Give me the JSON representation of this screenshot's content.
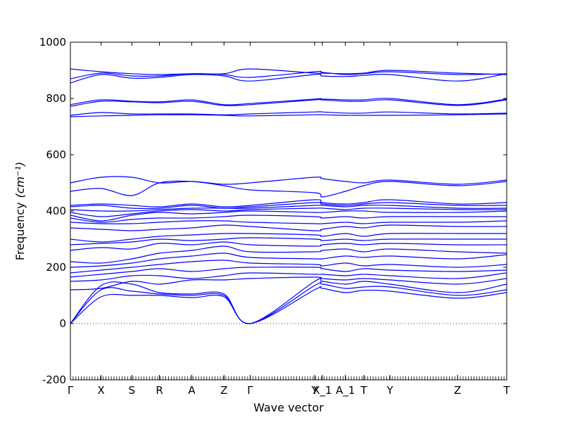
{
  "chart_data": {
    "type": "line",
    "title": "",
    "xlabel": "Wave vector",
    "ylabel": "Frequency",
    "ylabel_unit": "(cm⁻¹)",
    "ylim": [
      -200,
      1000
    ],
    "yticks": [
      -200,
      0,
      200,
      400,
      600,
      800,
      1000
    ],
    "grid": false,
    "legend": "none",
    "line_color": "#0000ff",
    "zero_line": {
      "y": 0,
      "style": "dotted",
      "color": "#000000"
    },
    "x_range": [
      0,
      14.2
    ],
    "kpoints": [
      {
        "label": "Γ",
        "x": 0.0
      },
      {
        "label": "X",
        "x": 1.0
      },
      {
        "label": "S",
        "x": 2.0
      },
      {
        "label": "R",
        "x": 2.9
      },
      {
        "label": "A",
        "x": 3.95
      },
      {
        "label": "Z",
        "x": 5.0
      },
      {
        "label": "Γ",
        "x": 5.85
      },
      {
        "label": "Y",
        "x": 7.95
      },
      {
        "label": "X_1",
        "x": 8.2
      },
      {
        "label": "A_1",
        "x": 8.95
      },
      {
        "label": "T",
        "x": 9.55
      },
      {
        "label": "Y",
        "x": 10.4
      },
      {
        "label": "Z",
        "x": 12.6
      },
      {
        "label": "T",
        "x": 14.2
      }
    ],
    "series": [
      {
        "x": [
          0,
          1,
          2,
          2.9,
          3.95,
          5,
          5.85,
          7.95,
          8.2,
          8.95,
          9.55,
          10.4,
          12.6,
          14.2
        ],
        "y": [
          0,
          95,
          100,
          100,
          92,
          95,
          0,
          120,
          125,
          110,
          118,
          115,
          90,
          110
        ]
      },
      {
        "x": [
          0,
          1,
          2,
          2.9,
          3.95,
          5,
          5.85,
          7.95,
          8.2,
          8.95,
          9.55,
          10.4,
          12.6,
          14.2
        ],
        "y": [
          0,
          120,
          115,
          105,
          100,
          100,
          0,
          135,
          140,
          125,
          130,
          130,
          100,
          120
        ]
      },
      {
        "x": [
          0,
          1,
          2,
          2.9,
          3.95,
          5,
          5.85,
          7.95,
          8.2,
          8.95,
          9.55,
          10.4,
          12.6,
          14.2
        ],
        "y": [
          0,
          135,
          140,
          110,
          105,
          105,
          0,
          150,
          150,
          140,
          150,
          140,
          110,
          140
        ]
      },
      {
        "x": [
          0,
          1,
          2,
          2.9,
          3.95,
          5,
          5.85,
          7.95,
          8.2,
          8.95,
          9.55,
          10.4,
          12.6,
          14.2
        ],
        "y": [
          120,
          125,
          150,
          140,
          155,
          155,
          160,
          165,
          160,
          155,
          160,
          155,
          140,
          160
        ]
      },
      {
        "x": [
          0,
          1,
          2,
          2.9,
          3.95,
          5,
          5.85,
          7.95,
          8.2,
          8.95,
          9.55,
          10.4,
          12.6,
          14.2
        ],
        "y": [
          150,
          155,
          170,
          170,
          160,
          170,
          180,
          175,
          175,
          170,
          175,
          170,
          160,
          180
        ]
      },
      {
        "x": [
          0,
          1,
          2,
          2.9,
          3.95,
          5,
          5.85,
          7.95,
          8.2,
          8.95,
          9.55,
          10.4,
          12.6,
          14.2
        ],
        "y": [
          165,
          175,
          185,
          195,
          185,
          195,
          200,
          200,
          195,
          185,
          195,
          190,
          185,
          190
        ]
      },
      {
        "x": [
          0,
          1,
          2,
          2.9,
          3.95,
          5,
          5.85,
          7.95,
          8.2,
          8.95,
          9.55,
          10.4,
          12.6,
          14.2
        ],
        "y": [
          180,
          190,
          200,
          210,
          220,
          225,
          215,
          210,
          205,
          215,
          205,
          210,
          200,
          210
        ]
      },
      {
        "x": [
          0,
          1,
          2,
          2.9,
          3.95,
          5,
          5.85,
          7.95,
          8.2,
          8.95,
          9.55,
          10.4,
          12.6,
          14.2
        ],
        "y": [
          200,
          205,
          215,
          230,
          240,
          250,
          235,
          230,
          230,
          240,
          235,
          240,
          230,
          245
        ]
      },
      {
        "x": [
          0,
          1,
          2,
          2.9,
          3.95,
          5,
          5.85,
          7.95,
          8.2,
          8.95,
          9.55,
          10.4,
          12.6,
          14.2
        ],
        "y": [
          220,
          215,
          230,
          250,
          260,
          275,
          255,
          255,
          260,
          265,
          255,
          265,
          255,
          250
        ]
      },
      {
        "x": [
          0,
          1,
          2,
          2.9,
          3.95,
          5,
          5.85,
          7.95,
          8.2,
          8.95,
          9.55,
          10.4,
          12.6,
          14.2
        ],
        "y": [
          260,
          270,
          265,
          285,
          280,
          290,
          280,
          275,
          280,
          285,
          280,
          285,
          280,
          280
        ]
      },
      {
        "x": [
          0,
          1,
          2,
          2.9,
          3.95,
          5,
          5.85,
          7.95,
          8.2,
          8.95,
          9.55,
          10.4,
          12.6,
          14.2
        ],
        "y": [
          280,
          285,
          290,
          300,
          295,
          300,
          305,
          300,
          295,
          300,
          295,
          300,
          300,
          300
        ]
      },
      {
        "x": [
          0,
          1,
          2,
          2.9,
          3.95,
          5,
          5.85,
          7.95,
          8.2,
          8.95,
          9.55,
          10.4,
          12.6,
          14.2
        ],
        "y": [
          300,
          290,
          300,
          310,
          315,
          320,
          320,
          315,
          310,
          320,
          310,
          320,
          320,
          320
        ]
      },
      {
        "x": [
          0,
          1,
          2,
          2.9,
          3.95,
          5,
          5.85,
          7.95,
          8.2,
          8.95,
          9.55,
          10.4,
          12.6,
          14.2
        ],
        "y": [
          340,
          335,
          330,
          335,
          340,
          350,
          345,
          330,
          335,
          345,
          340,
          350,
          345,
          345
        ]
      },
      {
        "x": [
          0,
          1,
          2,
          2.9,
          3.95,
          5,
          5.85,
          7.95,
          8.2,
          8.95,
          9.55,
          10.4,
          12.6,
          14.2
        ],
        "y": [
          360,
          355,
          355,
          360,
          365,
          365,
          360,
          355,
          355,
          360,
          355,
          360,
          360,
          365
        ]
      },
      {
        "x": [
          0,
          1,
          2,
          2.9,
          3.95,
          5,
          5.85,
          7.95,
          8.2,
          8.95,
          9.55,
          10.4,
          12.6,
          14.2
        ],
        "y": [
          375,
          360,
          370,
          375,
          375,
          380,
          385,
          380,
          375,
          380,
          375,
          380,
          380,
          380
        ]
      },
      {
        "x": [
          0,
          1,
          2,
          2.9,
          3.95,
          5,
          5.85,
          7.95,
          8.2,
          8.95,
          9.55,
          10.4,
          12.6,
          14.2
        ],
        "y": [
          385,
          365,
          385,
          395,
          390,
          395,
          400,
          395,
          395,
          400,
          400,
          395,
          395,
          400
        ]
      },
      {
        "x": [
          0,
          1,
          2,
          2.9,
          3.95,
          5,
          5.85,
          7.95,
          8.2,
          8.95,
          9.55,
          10.4,
          12.6,
          14.2
        ],
        "y": [
          395,
          380,
          390,
          400,
          405,
          400,
          405,
          410,
          410,
          405,
          410,
          410,
          405,
          405
        ]
      },
      {
        "x": [
          0,
          1,
          2,
          2.9,
          3.95,
          5,
          5.85,
          7.95,
          8.2,
          8.95,
          9.55,
          10.4,
          12.6,
          14.2
        ],
        "y": [
          405,
          400,
          400,
          405,
          410,
          410,
          410,
          420,
          420,
          415,
          420,
          420,
          410,
          410
        ]
      },
      {
        "x": [
          0,
          1,
          2,
          2.9,
          3.95,
          5,
          5.85,
          7.95,
          8.2,
          8.95,
          9.55,
          10.4,
          12.6,
          14.2
        ],
        "y": [
          415,
          420,
          410,
          410,
          420,
          410,
          415,
          430,
          425,
          420,
          425,
          430,
          420,
          420
        ]
      },
      {
        "x": [
          0,
          1,
          2,
          2.9,
          3.95,
          5,
          5.85,
          7.95,
          8.2,
          8.95,
          9.55,
          10.4,
          12.6,
          14.2
        ],
        "y": [
          420,
          425,
          420,
          415,
          425,
          415,
          420,
          440,
          430,
          425,
          430,
          440,
          425,
          430
        ]
      },
      {
        "x": [
          0,
          1,
          2,
          2.9,
          3.95,
          5,
          5.85,
          7.95,
          8.2,
          8.95,
          9.55,
          10.4,
          12.6,
          14.2
        ],
        "y": [
          470,
          480,
          455,
          500,
          505,
          490,
          475,
          465,
          450,
          470,
          490,
          505,
          490,
          505
        ]
      },
      {
        "x": [
          0,
          1,
          2,
          2.9,
          3.95,
          5,
          5.85,
          7.95,
          8.2,
          8.95,
          9.55,
          10.4,
          12.6,
          14.2
        ],
        "y": [
          500,
          520,
          520,
          500,
          505,
          495,
          500,
          520,
          515,
          505,
          500,
          510,
          495,
          510
        ]
      },
      {
        "x": [
          0,
          1,
          2,
          2.9,
          3.95,
          5,
          5.85,
          7.95,
          8.2,
          8.95,
          9.55,
          10.4,
          12.6,
          14.2
        ],
        "y": [
          735,
          738,
          740,
          742,
          742,
          740,
          738,
          742,
          742,
          740,
          740,
          740,
          742,
          745
        ]
      },
      {
        "x": [
          0,
          1,
          2,
          2.9,
          3.95,
          5,
          5.85,
          7.95,
          8.2,
          8.95,
          9.55,
          10.4,
          12.6,
          14.2
        ],
        "y": [
          740,
          750,
          745,
          745,
          745,
          742,
          745,
          752,
          752,
          748,
          748,
          752,
          745,
          748
        ]
      },
      {
        "x": [
          0,
          1,
          2,
          2.9,
          3.95,
          5,
          5.85,
          7.95,
          8.2,
          8.95,
          9.55,
          10.4,
          12.6,
          14.2
        ],
        "y": [
          772,
          790,
          788,
          785,
          790,
          775,
          778,
          795,
          795,
          790,
          790,
          795,
          775,
          795
        ]
      },
      {
        "x": [
          0,
          1,
          2,
          2.9,
          3.95,
          5,
          5.85,
          7.95,
          8.2,
          8.95,
          9.55,
          10.4,
          12.6,
          14.2
        ],
        "y": [
          778,
          795,
          790,
          788,
          795,
          778,
          782,
          798,
          798,
          795,
          795,
          800,
          778,
          798
        ]
      },
      {
        "x": [
          0,
          1,
          2,
          2.9,
          3.95,
          5,
          5.85,
          7.95,
          8.2,
          8.95,
          9.55,
          10.4,
          12.6,
          14.2
        ],
        "y": [
          855,
          885,
          872,
          875,
          885,
          880,
          862,
          885,
          880,
          878,
          882,
          885,
          862,
          888
        ]
      },
      {
        "x": [
          0,
          1,
          2,
          2.9,
          3.95,
          5,
          5.85,
          7.95,
          8.2,
          8.95,
          9.55,
          10.4,
          12.6,
          14.2
        ],
        "y": [
          870,
          890,
          880,
          880,
          888,
          885,
          875,
          895,
          893,
          885,
          888,
          895,
          885,
          888
        ]
      },
      {
        "x": [
          0,
          1,
          2,
          2.9,
          3.95,
          5,
          5.85,
          7.95,
          8.2,
          8.95,
          9.55,
          10.4,
          12.6,
          14.2
        ],
        "y": [
          905,
          895,
          888,
          885,
          888,
          888,
          905,
          890,
          890,
          888,
          890,
          900,
          890,
          885
        ]
      }
    ]
  }
}
